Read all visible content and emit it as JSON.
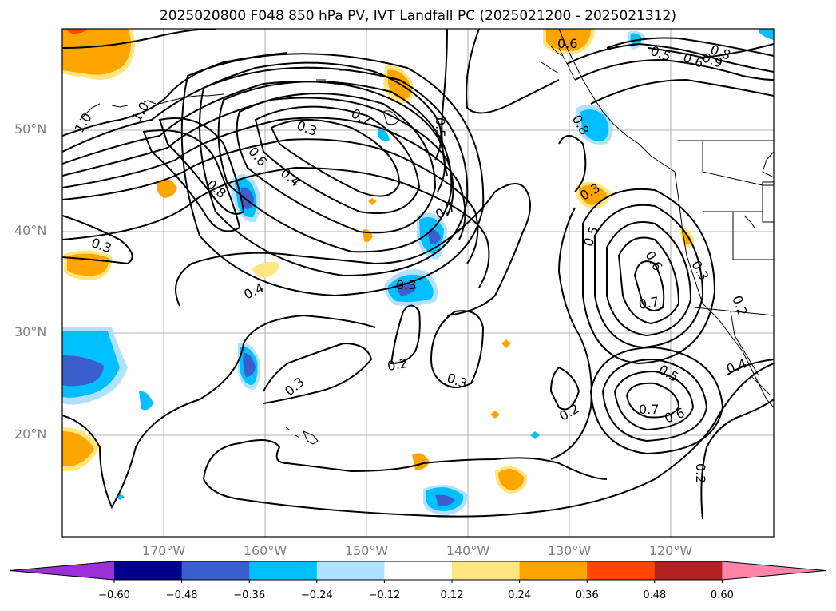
{
  "title": "2025020800 F048 850 hPa PV, IVT Landfall PC (2025021200 - 2025021312)",
  "lat_labels": [
    "50°N",
    "40°N",
    "30°N",
    "20°N"
  ],
  "lon_labels": [
    "170°W",
    "160°W",
    "150°W",
    "140°W",
    "130°W",
    "120°W"
  ],
  "colorbar": {
    "ticks": [
      "−0.60",
      "−0.48",
      "−0.36",
      "−0.24",
      "−0.12",
      "0.12",
      "0.24",
      "0.36",
      "0.48",
      "0.60"
    ],
    "colors": [
      "#9b30d9",
      "#00008b",
      "#3a5fcd",
      "#00bfff",
      "#b0e2ff",
      "#ffffff",
      "#ffe680",
      "#ffa500",
      "#ff4500",
      "#b22222",
      "#ff85a8"
    ]
  },
  "contour_labels": [
    "1.0",
    "1.0",
    "0.8",
    "0.6",
    "0.4",
    "0.3",
    "0.7",
    "0.5",
    "0.6",
    "0.5",
    "0.6",
    "0.9",
    "0.8",
    "0.3",
    "0.7",
    "0.5",
    "0.6",
    "0.3",
    "0.3",
    "0.7",
    "0.4",
    "0.3",
    "0.2",
    "0.3",
    "0.2",
    "0.5",
    "0.7",
    "0.6",
    "0.4",
    "0.2",
    "0.2",
    "0.3",
    "0.8"
  ]
}
